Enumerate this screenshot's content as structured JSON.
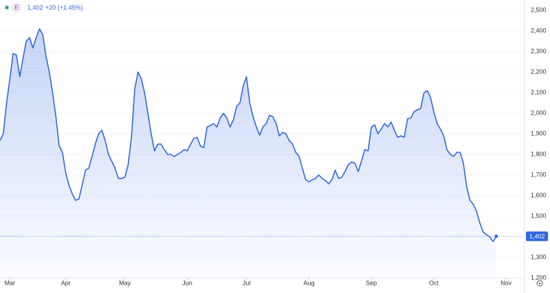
{
  "chart_data": {
    "type": "area",
    "header": {
      "symbol": "E",
      "price": "1,402",
      "change": "+20 (+1.45%)"
    },
    "series": [
      {
        "name": "E",
        "color": "#2f66e0",
        "values": [
          1867,
          1900,
          2050,
          2167,
          2290,
          2283,
          2177,
          2267,
          2350,
          2367,
          2317,
          2367,
          2410,
          2383,
          2277,
          2200,
          2100,
          1983,
          1843,
          1810,
          1710,
          1650,
          1607,
          1577,
          1583,
          1650,
          1723,
          1733,
          1790,
          1850,
          1900,
          1917,
          1867,
          1800,
          1767,
          1733,
          1683,
          1683,
          1690,
          1750,
          1883,
          2117,
          2200,
          2167,
          2100,
          2000,
          1900,
          1817,
          1850,
          1850,
          1823,
          1800,
          1800,
          1790,
          1800,
          1810,
          1823,
          1817,
          1850,
          1877,
          1883,
          1840,
          1833,
          1933,
          1940,
          1950,
          1933,
          1977,
          2000,
          1977,
          1933,
          1967,
          2033,
          2050,
          2133,
          2177,
          2050,
          1983,
          1933,
          1893,
          1933,
          1950,
          1990,
          1983,
          1950,
          1890,
          1907,
          1900,
          1867,
          1850,
          1810,
          1790,
          1733,
          1677,
          1667,
          1677,
          1683,
          1700,
          1683,
          1673,
          1657,
          1677,
          1723,
          1683,
          1690,
          1717,
          1750,
          1763,
          1757,
          1717,
          1767,
          1823,
          1817,
          1933,
          1943,
          1900,
          1923,
          1950,
          1933,
          1957,
          1917,
          1883,
          1890,
          1883,
          1973,
          1977,
          2007,
          2017,
          2023,
          2100,
          2110,
          2077,
          2007,
          1950,
          1923,
          1890,
          1823,
          1800,
          1790,
          1810,
          1810,
          1757,
          1643,
          1577,
          1557,
          1523,
          1467,
          1423,
          1410,
          1400,
          1377,
          1402
        ]
      }
    ],
    "xlim": [
      0,
      159.4
    ],
    "xticks": [
      {
        "value": 3,
        "label": "Mar"
      },
      {
        "value": 20,
        "label": "Apr"
      },
      {
        "value": 38,
        "label": "May"
      },
      {
        "value": 57,
        "label": "Jun"
      },
      {
        "value": 75,
        "label": "Jul"
      },
      {
        "value": 94,
        "label": "Aug"
      },
      {
        "value": 113,
        "label": "Sep"
      },
      {
        "value": 132,
        "label": "Oct"
      },
      {
        "value": 154,
        "label": "Nov"
      }
    ],
    "ylim": [
      1200,
      2500
    ],
    "yticks": [
      {
        "value": 2500,
        "label": "2,500"
      },
      {
        "value": 2400,
        "label": "2,400"
      },
      {
        "value": 2300,
        "label": "2,300"
      },
      {
        "value": 2200,
        "label": "2,200"
      },
      {
        "value": 2100,
        "label": "2,100"
      },
      {
        "value": 2000,
        "label": "2,000"
      },
      {
        "value": 1900,
        "label": "1,900"
      },
      {
        "value": 1800,
        "label": "1,800"
      },
      {
        "value": 1700,
        "label": "1,700"
      },
      {
        "value": 1600,
        "label": "1,600"
      },
      {
        "value": 1500,
        "label": "1,500"
      },
      {
        "value": 1400,
        "label": "1,400"
      },
      {
        "value": 1300,
        "label": "1,300"
      },
      {
        "value": 1200,
        "label": "1,200"
      }
    ],
    "last_price": 1402,
    "last_price_label": "1,402",
    "grid": true
  }
}
